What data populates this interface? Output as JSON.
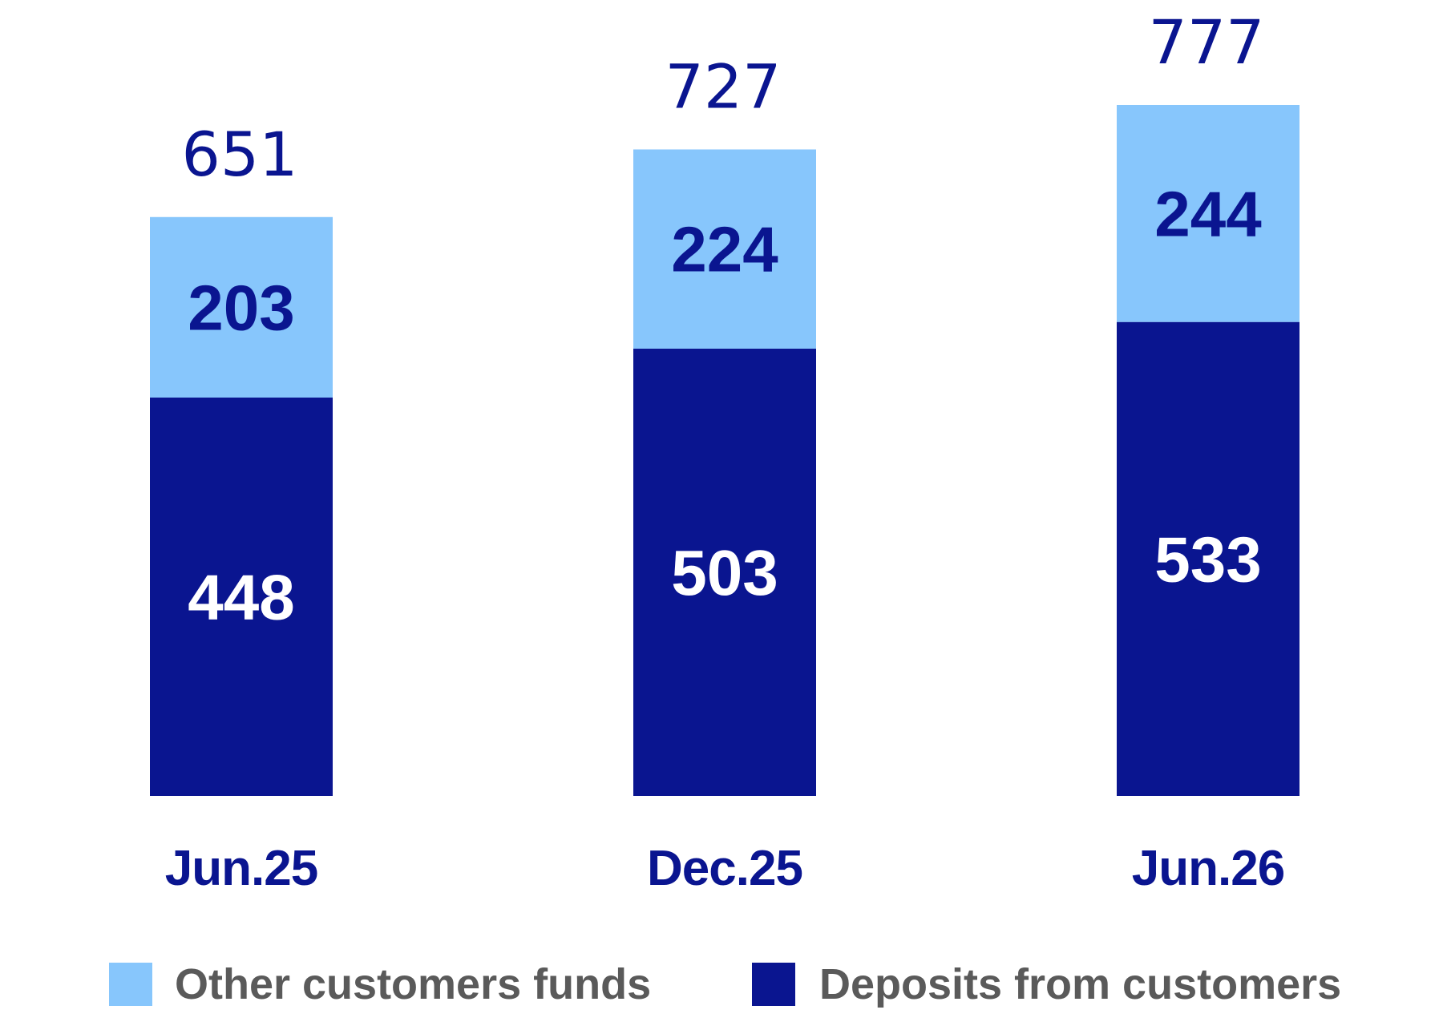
{
  "chart_data": {
    "type": "bar",
    "stacked": true,
    "categories": [
      "Jun.25",
      "Dec.25",
      "Jun.26"
    ],
    "totals": [
      "651",
      "727",
      "777"
    ],
    "series": [
      {
        "name": "Deposits from customers",
        "values": [
          448,
          503,
          533
        ],
        "color": "#0a1590",
        "label_color": "#ffffff"
      },
      {
        "name": "Other customers funds",
        "values": [
          203,
          224,
          244
        ],
        "color": "#87c6fc",
        "label_color": "#0a1590"
      }
    ],
    "legend": {
      "position": "bottom",
      "order": [
        1,
        0
      ]
    },
    "grid": false
  }
}
